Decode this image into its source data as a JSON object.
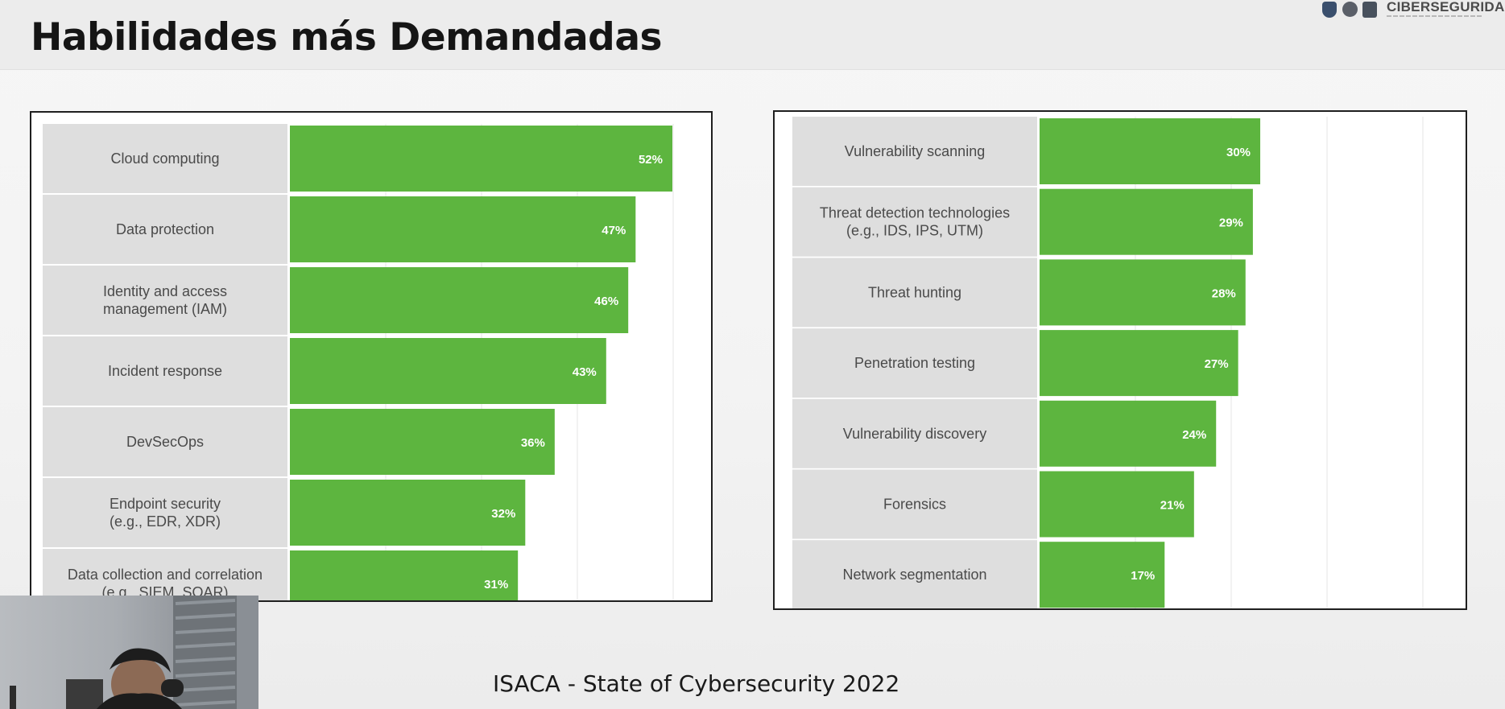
{
  "slide": {
    "title": "Habilidades más Demandadas",
    "source": "ISACA - State of Cybersecurity 2022"
  },
  "logo": {
    "text": "CIBERSEGURIDAD"
  },
  "colors": {
    "bar": "#5db53f",
    "label_bg": "#dedede",
    "value_text": "#ffffff",
    "label_text": "#4a4a4a",
    "gridline": "#e6e6e6"
  },
  "chart_data": [
    {
      "type": "bar",
      "orientation": "horizontal",
      "value_format": "percent",
      "xlim": [
        0,
        60
      ],
      "grid": true,
      "categories": [
        [
          "Cloud computing"
        ],
        [
          "Data protection"
        ],
        [
          "Identity and access",
          "management (IAM)"
        ],
        [
          "Incident response"
        ],
        [
          "DevSecOps"
        ],
        [
          "Endpoint security",
          "(e.g., EDR, XDR)"
        ],
        [
          "Data collection and correlation",
          "(e.g., SIEM, SOAR)"
        ]
      ],
      "values": [
        52,
        47,
        46,
        43,
        36,
        32,
        31
      ],
      "value_labels": [
        "52%",
        "47%",
        "46%",
        "43%",
        "36%",
        "32%",
        "31%"
      ]
    },
    {
      "type": "bar",
      "orientation": "horizontal",
      "value_format": "percent",
      "xlim": [
        0,
        60
      ],
      "grid": true,
      "categories": [
        [
          "Vulnerability scanning"
        ],
        [
          "Threat detection technologies",
          "(e.g., IDS, IPS, UTM)"
        ],
        [
          "Threat hunting"
        ],
        [
          "Penetration testing"
        ],
        [
          "Vulnerability discovery"
        ],
        [
          "Forensics"
        ],
        [
          "Network segmentation"
        ]
      ],
      "values": [
        30,
        29,
        28,
        27,
        24,
        21,
        17
      ],
      "value_labels": [
        "30%",
        "29%",
        "28%",
        "27%",
        "24%",
        "21%",
        "17%"
      ]
    }
  ]
}
